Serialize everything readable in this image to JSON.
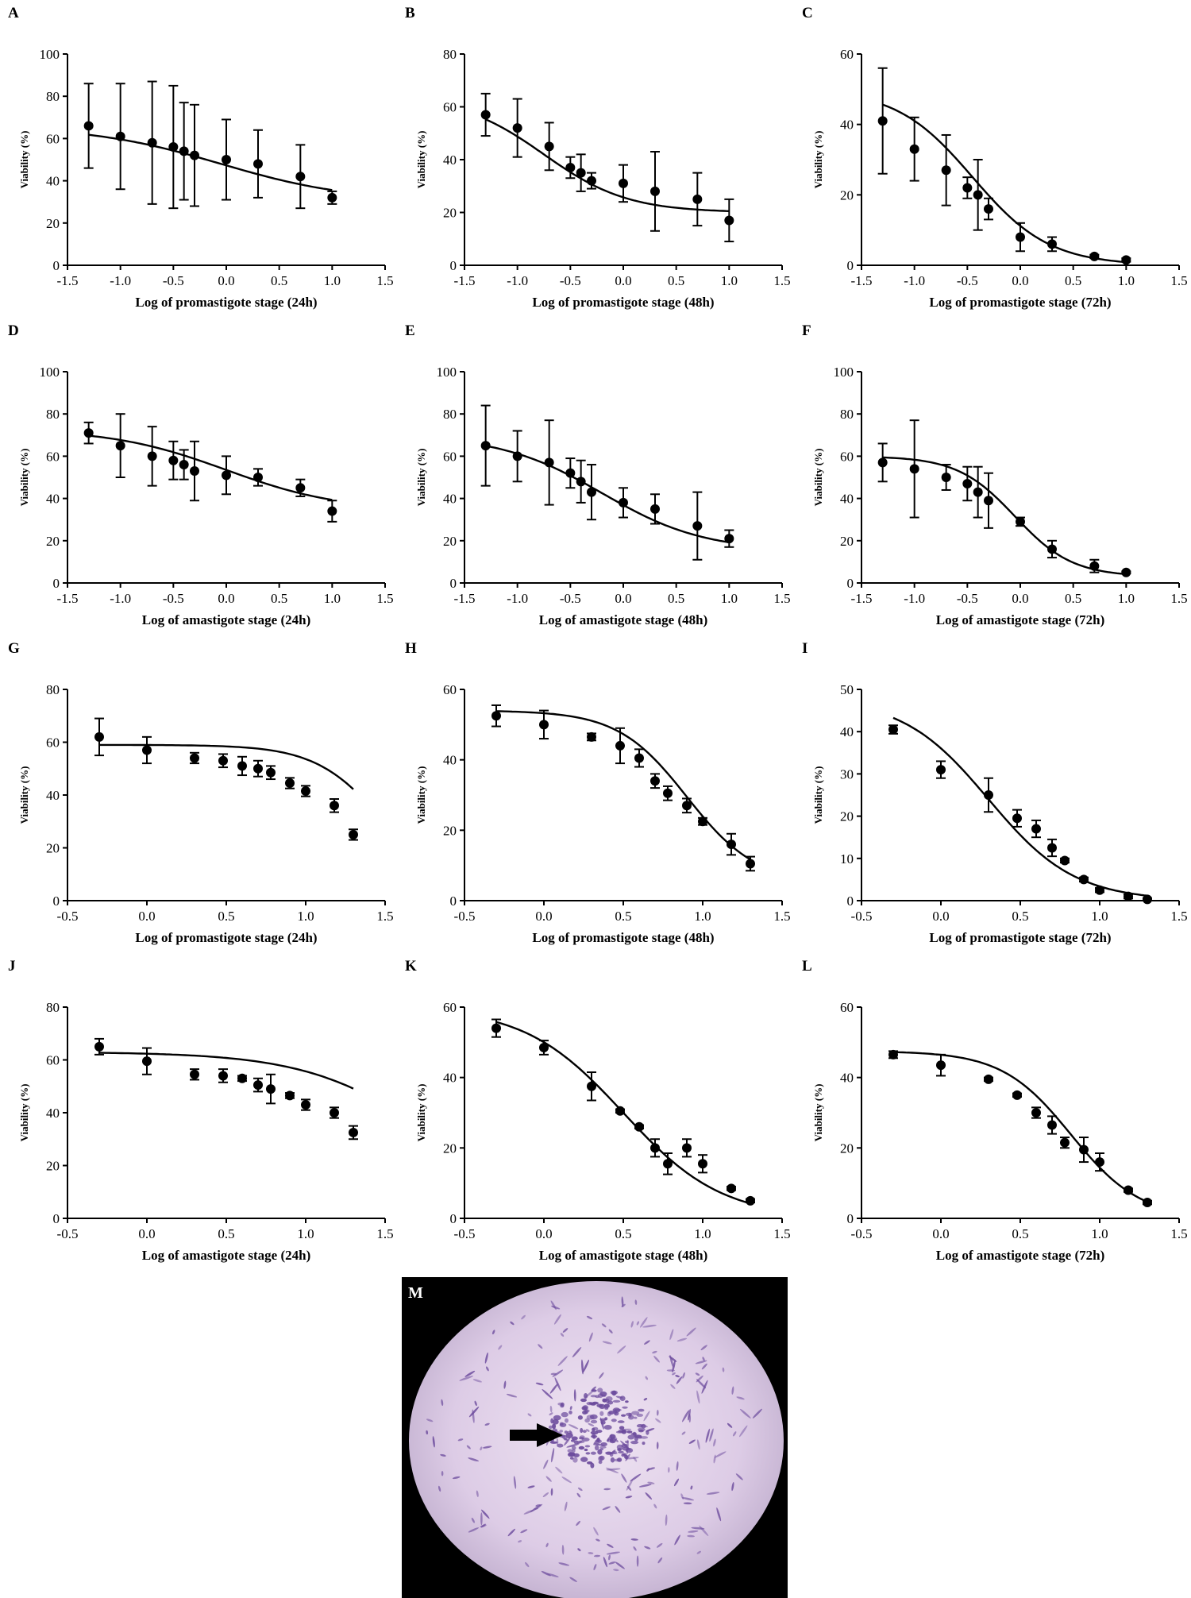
{
  "colors": {
    "ink": "#000000",
    "micrograph_background": "#000000",
    "stain_field": "#d9c8e2",
    "stain_cells": "#6b4a9c"
  },
  "chart_data": [
    {
      "panel": "A",
      "type": "scatter",
      "xlabel": "Log of promastigote stage (24h)",
      "ylabel": "Viability (%)",
      "xlim": [
        -1.5,
        1.5
      ],
      "ylim": [
        0,
        100
      ],
      "xticks": [
        -1.5,
        -1.0,
        -0.5,
        0.0,
        0.5,
        1.0,
        1.5
      ],
      "yticks": [
        0,
        20,
        40,
        60,
        80,
        100
      ],
      "x": [
        -1.3,
        -1.0,
        -0.7,
        -0.5,
        -0.4,
        -0.3,
        0.0,
        0.3,
        0.7,
        1.0
      ],
      "y": [
        66,
        61,
        58,
        56,
        54,
        52,
        50,
        48,
        42,
        32
      ],
      "err": [
        20,
        25,
        29,
        29,
        23,
        24,
        19,
        16,
        15,
        3
      ],
      "fit": {
        "top": 66,
        "bottom": 30,
        "logec50": -0.05,
        "hill": -0.7
      }
    },
    {
      "panel": "B",
      "type": "scatter",
      "xlabel": "Log of promastigote stage (48h)",
      "ylabel": "Viability (%)",
      "xlim": [
        -1.5,
        1.5
      ],
      "ylim": [
        0,
        80
      ],
      "xticks": [
        -1.5,
        -1.0,
        -0.5,
        0.0,
        0.5,
        1.0,
        1.5
      ],
      "yticks": [
        0,
        20,
        40,
        60,
        80
      ],
      "x": [
        -1.3,
        -1.0,
        -0.7,
        -0.5,
        -0.4,
        -0.3,
        0.0,
        0.3,
        0.7,
        1.0
      ],
      "y": [
        57,
        52,
        45,
        37,
        35,
        32,
        31,
        28,
        25,
        17
      ],
      "err": [
        8,
        11,
        9,
        4,
        7,
        3,
        7,
        15,
        10,
        8
      ],
      "fit": {
        "top": 64,
        "bottom": 20,
        "logec50": -0.75,
        "hill": -1.1
      }
    },
    {
      "panel": "C",
      "type": "scatter",
      "xlabel": "Log of promastigote stage (72h)",
      "ylabel": "Viability (%)",
      "xlim": [
        -1.5,
        1.5
      ],
      "ylim": [
        0,
        60
      ],
      "xticks": [
        -1.5,
        -1.0,
        -0.5,
        0.0,
        0.5,
        1.0,
        1.5
      ],
      "yticks": [
        0,
        20,
        40,
        60
      ],
      "x": [
        -1.3,
        -1.0,
        -0.7,
        -0.5,
        -0.4,
        -0.3,
        0.0,
        0.3,
        0.7,
        1.0
      ],
      "y": [
        41,
        33,
        27,
        22,
        20,
        16,
        8,
        6,
        2.5,
        1.5
      ],
      "err": [
        15,
        9,
        10,
        3,
        10,
        3,
        4,
        2,
        0.5,
        0.5
      ],
      "fit": {
        "top": 50,
        "bottom": 0,
        "logec50": -0.45,
        "hill": -1.2
      }
    },
    {
      "panel": "D",
      "type": "scatter",
      "xlabel": "Log of amastigote stage (24h)",
      "ylabel": "Viability (%)",
      "xlim": [
        -1.5,
        1.5
      ],
      "ylim": [
        0,
        100
      ],
      "xticks": [
        -1.5,
        -1.0,
        -0.5,
        0.0,
        0.5,
        1.0,
        1.5
      ],
      "yticks": [
        0,
        20,
        40,
        60,
        80,
        100
      ],
      "x": [
        -1.3,
        -1.0,
        -0.7,
        -0.5,
        -0.4,
        -0.3,
        0.0,
        0.3,
        0.7,
        1.0
      ],
      "y": [
        71,
        65,
        60,
        58,
        56,
        53,
        51,
        50,
        45,
        34
      ],
      "err": [
        5,
        15,
        14,
        9,
        7,
        14,
        9,
        4,
        4,
        5
      ],
      "fit": {
        "top": 73,
        "bottom": 34,
        "logec50": 0.0,
        "hill": -0.8
      }
    },
    {
      "panel": "E",
      "type": "scatter",
      "xlabel": "Log of amastigote stage (48h)",
      "ylabel": "Viability (%)",
      "xlim": [
        -1.5,
        1.5
      ],
      "ylim": [
        0,
        100
      ],
      "xticks": [
        -1.5,
        -1.0,
        -0.5,
        0.0,
        0.5,
        1.0,
        1.5
      ],
      "yticks": [
        0,
        20,
        40,
        60,
        80,
        100
      ],
      "x": [
        -1.3,
        -1.0,
        -0.7,
        -0.5,
        -0.4,
        -0.3,
        0.0,
        0.3,
        0.7,
        1.0
      ],
      "y": [
        65,
        60,
        57,
        52,
        48,
        43,
        38,
        35,
        27,
        21
      ],
      "err": [
        19,
        12,
        20,
        7,
        10,
        13,
        7,
        7,
        16,
        4
      ],
      "fit": {
        "top": 70,
        "bottom": 15,
        "logec50": -0.2,
        "hill": -0.9
      }
    },
    {
      "panel": "F",
      "type": "scatter",
      "xlabel": "Log of amastigote stage (72h)",
      "ylabel": "Viability (%)",
      "xlim": [
        -1.5,
        1.5
      ],
      "ylim": [
        0,
        100
      ],
      "xticks": [
        -1.5,
        -1.0,
        -0.5,
        0.0,
        0.5,
        1.0,
        1.5
      ],
      "yticks": [
        0,
        20,
        40,
        60,
        80,
        100
      ],
      "x": [
        -1.3,
        -1.0,
        -0.7,
        -0.5,
        -0.4,
        -0.3,
        0.0,
        0.3,
        0.7,
        1.0
      ],
      "y": [
        57,
        54,
        50,
        47,
        43,
        39,
        29,
        16,
        8,
        5
      ],
      "err": [
        9,
        23,
        6,
        8,
        12,
        13,
        2,
        4,
        3,
        0.5
      ],
      "fit": {
        "top": 60,
        "bottom": 3,
        "logec50": -0.05,
        "hill": -1.6
      }
    },
    {
      "panel": "G",
      "type": "scatter",
      "xlabel": "Log of promastigote stage (24h)",
      "ylabel": "Viability (%)",
      "xlim": [
        -0.5,
        1.5
      ],
      "ylim": [
        0,
        80
      ],
      "xticks": [
        -0.5,
        0.0,
        0.5,
        1.0,
        1.5
      ],
      "yticks": [
        0,
        20,
        40,
        60,
        80
      ],
      "x": [
        -0.3,
        0.0,
        0.3,
        0.48,
        0.6,
        0.7,
        0.78,
        0.9,
        1.0,
        1.18,
        1.3
      ],
      "y": [
        62,
        57,
        54,
        53,
        51,
        50,
        48.5,
        44.5,
        41.5,
        36,
        25
      ],
      "err": [
        7,
        5,
        2,
        2.5,
        3.5,
        3,
        2.5,
        2,
        2,
        2.5,
        2
      ],
      "fit": {
        "top": 59,
        "bottom": 0,
        "logec50": 1.5,
        "hill": -2.0
      }
    },
    {
      "panel": "H",
      "type": "scatter",
      "xlabel": "Log of promastigote stage (48h)",
      "ylabel": "Viability (%)",
      "xlim": [
        -0.5,
        1.5
      ],
      "ylim": [
        0,
        60
      ],
      "xticks": [
        -0.5,
        0.0,
        0.5,
        1.0,
        1.5
      ],
      "yticks": [
        0,
        20,
        40,
        60
      ],
      "x": [
        -0.3,
        0.0,
        0.3,
        0.48,
        0.6,
        0.7,
        0.78,
        0.9,
        1.0,
        1.18,
        1.3
      ],
      "y": [
        52.5,
        50,
        46.5,
        44,
        40.5,
        34,
        30.5,
        27,
        22.5,
        16,
        10.5
      ],
      "err": [
        3,
        4,
        1,
        5,
        2.5,
        2,
        2,
        2,
        1,
        3,
        2
      ],
      "fit": {
        "top": 54,
        "bottom": 5,
        "logec50": 0.9,
        "hill": -2.0
      }
    },
    {
      "panel": "I",
      "type": "scatter",
      "xlabel": "Log of promastigote stage (72h)",
      "ylabel": "Viability (%)",
      "xlim": [
        -0.5,
        1.5
      ],
      "ylim": [
        0,
        50
      ],
      "xticks": [
        -0.5,
        0.0,
        0.5,
        1.0,
        1.5
      ],
      "yticks": [
        0,
        10,
        20,
        30,
        40,
        50
      ],
      "x": [
        -0.3,
        0.0,
        0.3,
        0.48,
        0.6,
        0.7,
        0.78,
        0.9,
        1.0,
        1.18,
        1.3
      ],
      "y": [
        40.5,
        31,
        25,
        19.5,
        17,
        12.5,
        9.5,
        5,
        2.5,
        1,
        0.3
      ],
      "err": [
        1,
        2,
        4,
        2,
        2,
        2,
        0.5,
        0.5,
        0.5,
        0.5,
        0.3
      ],
      "fit": {
        "top": 48,
        "bottom": 0,
        "logec50": 0.3,
        "hill": -1.6
      }
    },
    {
      "panel": "J",
      "type": "scatter",
      "xlabel": "Log of amastigote stage (24h)",
      "ylabel": "Viability (%)",
      "xlim": [
        -0.5,
        1.5
      ],
      "ylim": [
        0,
        80
      ],
      "xticks": [
        -0.5,
        0.0,
        0.5,
        1.0,
        1.5
      ],
      "yticks": [
        0,
        20,
        40,
        60,
        80
      ],
      "x": [
        -0.3,
        0.0,
        0.3,
        0.48,
        0.6,
        0.7,
        0.78,
        0.9,
        1.0,
        1.18,
        1.3
      ],
      "y": [
        65,
        59.5,
        54.5,
        54,
        53,
        50.5,
        49,
        46.5,
        43,
        40,
        32.5
      ],
      "err": [
        3,
        5,
        2,
        2.5,
        1,
        2.5,
        5.5,
        1,
        2,
        2,
        2.5
      ],
      "fit": {
        "top": 63,
        "bottom": 0,
        "logec50": 1.8,
        "hill": -1.1
      }
    },
    {
      "panel": "K",
      "type": "scatter",
      "xlabel": "Log of amastigote stage (48h)",
      "ylabel": "Viability (%)",
      "xlim": [
        -0.5,
        1.5
      ],
      "ylim": [
        0,
        60
      ],
      "xticks": [
        -0.5,
        0.0,
        0.5,
        1.0,
        1.5
      ],
      "yticks": [
        0,
        20,
        40,
        60
      ],
      "x": [
        -0.3,
        0.0,
        0.3,
        0.48,
        0.6,
        0.7,
        0.78,
        0.9,
        1.0,
        1.18,
        1.3
      ],
      "y": [
        54,
        48.5,
        37.5,
        30.5,
        26,
        20,
        15.5,
        20,
        15.5,
        8.5,
        5
      ],
      "err": [
        2.5,
        2,
        4,
        0.5,
        0.5,
        2.5,
        3,
        2.5,
        2.5,
        0.5,
        0.5
      ],
      "fit": {
        "top": 60,
        "bottom": 0,
        "logec50": 0.5,
        "hill": -1.4
      }
    },
    {
      "panel": "L",
      "type": "scatter",
      "xlabel": "Log of amastigote stage (72h)",
      "ylabel": "Viability (%)",
      "xlim": [
        -0.5,
        1.5
      ],
      "ylim": [
        0,
        60
      ],
      "xticks": [
        -0.5,
        0.0,
        0.5,
        1.0,
        1.5
      ],
      "yticks": [
        0,
        20,
        40,
        60
      ],
      "x": [
        -0.3,
        0.0,
        0.3,
        0.48,
        0.6,
        0.7,
        0.78,
        0.9,
        1.0,
        1.18,
        1.3
      ],
      "y": [
        46.5,
        43.5,
        39.5,
        35,
        30,
        26.5,
        21.5,
        19.5,
        16,
        8,
        4.5
      ],
      "err": [
        1,
        3,
        0.5,
        0.5,
        1.5,
        2.5,
        1.5,
        3.5,
        2.5,
        0.5,
        0.5
      ],
      "fit": {
        "top": 47.5,
        "bottom": 0,
        "logec50": 0.82,
        "hill": -2.0
      }
    }
  ],
  "micrograph": {
    "panel": "M"
  }
}
